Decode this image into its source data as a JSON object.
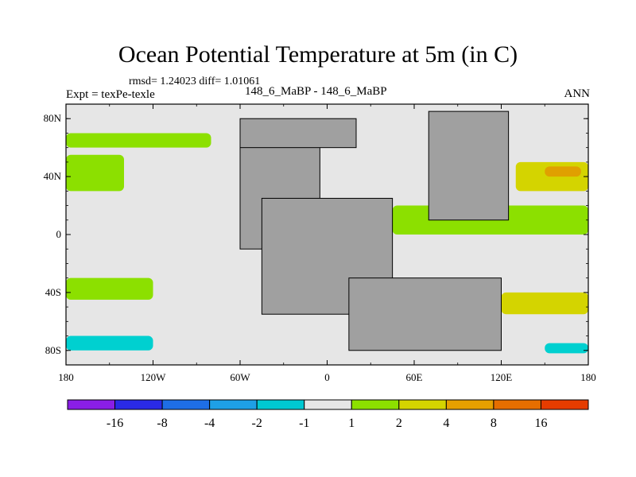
{
  "title": "Ocean Potential Temperature at 5m (in C)",
  "stats_text": "rmsd= 1.24023 diff= 1.01061",
  "left_label": "Expt = texPe-texle",
  "center_label": "148_6_MaBP - 148_6_MaBP",
  "right_label": "ANN",
  "map": {
    "lon_range": [
      -180,
      180
    ],
    "lat_range": [
      -90,
      90
    ],
    "lat_ticks": [
      {
        "value": 80,
        "label": "80N"
      },
      {
        "value": 40,
        "label": "40N"
      },
      {
        "value": 0,
        "label": "0"
      },
      {
        "value": -40,
        "label": "40S"
      },
      {
        "value": -80,
        "label": "80S"
      }
    ],
    "lon_ticks": [
      {
        "value": -180,
        "label": "180"
      },
      {
        "value": -120,
        "label": "120W"
      },
      {
        "value": -60,
        "label": "60W"
      },
      {
        "value": 0,
        "label": "0"
      },
      {
        "value": 60,
        "label": "60E"
      },
      {
        "value": 120,
        "label": "120E"
      },
      {
        "value": 180,
        "label": "180"
      }
    ],
    "land_color": "#a0a0a0",
    "ocean_base_color": "#e6e6e6",
    "land_regions": [
      {
        "name": "north-america-asia-block",
        "lon": [
          -60,
          -5
        ],
        "lat": [
          -10,
          70
        ]
      },
      {
        "name": "arctic-shelf",
        "lon": [
          -60,
          20
        ],
        "lat": [
          60,
          80
        ]
      },
      {
        "name": "africa-south-america",
        "lon": [
          -45,
          45
        ],
        "lat": [
          -55,
          25
        ]
      },
      {
        "name": "eurasia-east",
        "lon": [
          70,
          125
        ],
        "lat": [
          10,
          85
        ]
      },
      {
        "name": "antarctica-australia",
        "lon": [
          15,
          120
        ],
        "lat": [
          -80,
          -30
        ]
      }
    ],
    "anomaly_bands": [
      {
        "level": "1 to 2",
        "color": "#8ce000",
        "lon": [
          -180,
          -80
        ],
        "lat": [
          60,
          70
        ]
      },
      {
        "level": "2 to 4",
        "color": "#d4d400",
        "lon": [
          -180,
          -150
        ],
        "lat": [
          35,
          50
        ]
      },
      {
        "level": "1 to 2",
        "color": "#8ce000",
        "lon": [
          -180,
          -140
        ],
        "lat": [
          30,
          55
        ]
      },
      {
        "level": "1 to 2",
        "color": "#8ce000",
        "lon": [
          -180,
          -120
        ],
        "lat": [
          -45,
          -30
        ]
      },
      {
        "level": "-2 to -1",
        "color": "#00d0d0",
        "lon": [
          -180,
          -120
        ],
        "lat": [
          -80,
          -70
        ]
      },
      {
        "level": "2 to 4",
        "color": "#d4d400",
        "lon": [
          130,
          180
        ],
        "lat": [
          30,
          50
        ]
      },
      {
        "level": "4 to 8",
        "color": "#e0a000",
        "lon": [
          150,
          175
        ],
        "lat": [
          40,
          47
        ]
      },
      {
        "level": "1 to 2",
        "color": "#8ce000",
        "lon": [
          45,
          180
        ],
        "lat": [
          0,
          20
        ]
      },
      {
        "level": "2 to 4",
        "color": "#d4d400",
        "lon": [
          120,
          180
        ],
        "lat": [
          -55,
          -40
        ]
      },
      {
        "level": "-2 to -1",
        "color": "#00d0d0",
        "lon": [
          150,
          180
        ],
        "lat": [
          -82,
          -75
        ]
      }
    ]
  },
  "colorbar": {
    "colors": [
      "#8a1ee6",
      "#2a2ae6",
      "#1e6ee6",
      "#1ea0e6",
      "#00c8d2",
      "#e6e6e6",
      "#8ce000",
      "#d4d400",
      "#e6a000",
      "#e66e00",
      "#e63c00"
    ],
    "labels": [
      "-16",
      "-8",
      "-4",
      "-2",
      "-1",
      "1",
      "2",
      "4",
      "8",
      "16"
    ]
  }
}
